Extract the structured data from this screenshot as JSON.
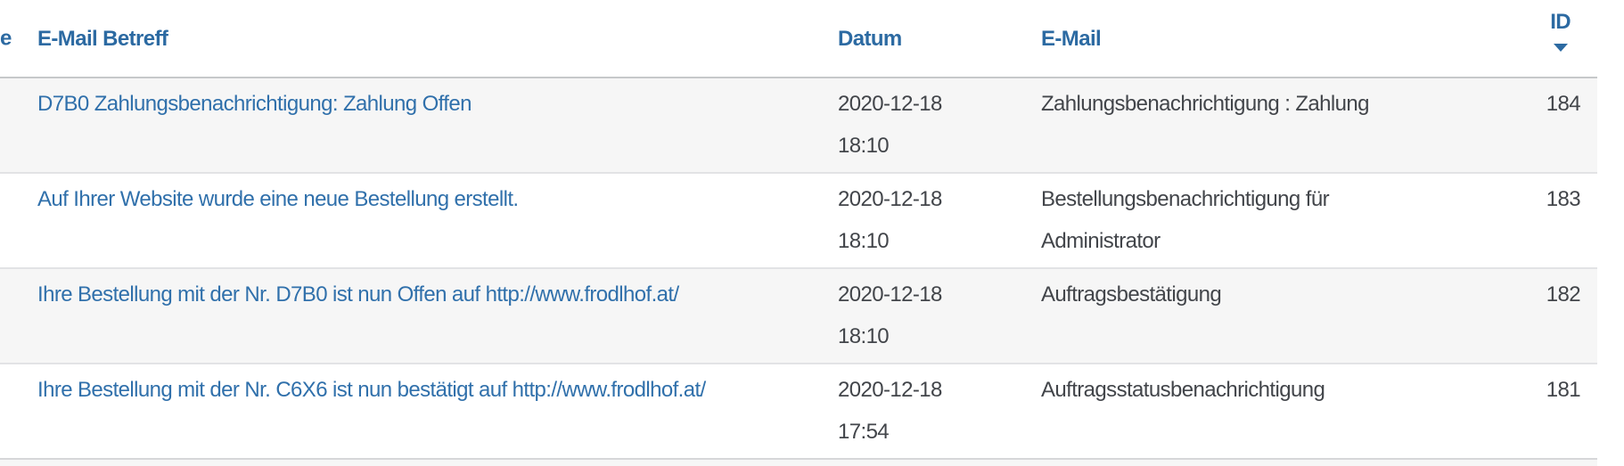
{
  "colors": {
    "header_link_blue": "#2c6aa2",
    "row_link_blue": "#3070ab",
    "body_text": "#42454a",
    "stripe_row_bg": "#f6f6f6",
    "header_border": "#c6c8ca",
    "row_border": "#e2e3e5"
  },
  "table": {
    "left_truncated_header": {
      "visible_text": "e"
    },
    "columns": [
      {
        "key": "subject",
        "label": "E-Mail Betreff"
      },
      {
        "key": "date",
        "label": "Datum"
      },
      {
        "key": "type",
        "label": "E-Mail"
      },
      {
        "key": "id",
        "label": "ID",
        "sort": "desc"
      }
    ],
    "rows": [
      {
        "subject": "D7B0 Zahlungsbenachrichtigung: Zahlung Offen",
        "date": "2020-12-18 18:10",
        "type": "Zahlungsbenachrichtigung : Zahlung",
        "id": "184"
      },
      {
        "subject": "Auf Ihrer Website wurde eine neue Bestellung erstellt.",
        "date": "2020-12-18 18:10",
        "type": "Bestellungsbenachrichtigung für Administrator",
        "id": "183"
      },
      {
        "subject": "Ihre Bestellung mit der Nr. D7B0 ist nun Offen auf http://www.frodlhof.at/",
        "date": "2020-12-18 18:10",
        "type": "Auftragsbestätigung",
        "id": "182"
      },
      {
        "subject": "Ihre Bestellung mit der Nr. C6X6 ist nun bestätigt auf http://www.frodlhof.at/",
        "date": "2020-12-18 17:54",
        "type": "Auftragsstatusbenachrichtigung",
        "id": "181"
      }
    ]
  }
}
